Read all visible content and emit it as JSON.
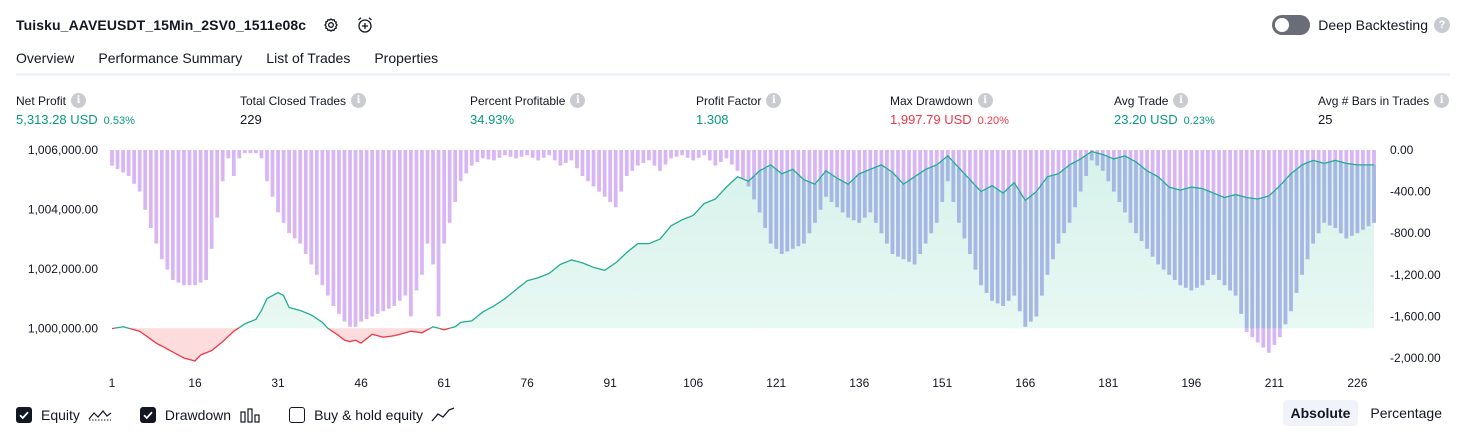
{
  "header": {
    "title": "Tuisku_AAVEUSDT_15Min_2SV0_1511e08c",
    "settings_icon": "gear-icon",
    "alert_icon": "alarm-clock-plus-icon"
  },
  "deep_backtesting": {
    "label": "Deep Backtesting",
    "enabled": false,
    "help_icon": "question-icon"
  },
  "tabs": [
    {
      "label": "Overview",
      "active": true
    },
    {
      "label": "Performance Summary",
      "active": false
    },
    {
      "label": "List of Trades",
      "active": false
    },
    {
      "label": "Properties",
      "active": false
    }
  ],
  "metrics": [
    {
      "label": "Net Profit",
      "value": "5,313.28 USD",
      "pct": "0.53%",
      "tone": "pos"
    },
    {
      "label": "Total Closed Trades",
      "value": "229",
      "pct": "",
      "tone": "neutral"
    },
    {
      "label": "Percent Profitable",
      "value": "34.93%",
      "pct": "",
      "tone": "pos"
    },
    {
      "label": "Profit Factor",
      "value": "1.308",
      "pct": "",
      "tone": "pos"
    },
    {
      "label": "Max Drawdown",
      "value": "1,997.79 USD",
      "pct": "0.20%",
      "tone": "neg"
    },
    {
      "label": "Avg Trade",
      "value": "23.20 USD",
      "pct": "0.23%",
      "tone": "pos"
    },
    {
      "label": "Avg # Bars in Trades",
      "value": "25",
      "pct": "",
      "tone": "neutral"
    }
  ],
  "chart_data": {
    "type": "line",
    "x_ticks": [
      "1",
      "16",
      "31",
      "46",
      "61",
      "76",
      "91",
      "106",
      "121",
      "136",
      "151",
      "166",
      "181",
      "196",
      "211",
      "226"
    ],
    "xlim": [
      1,
      229
    ],
    "y_left": {
      "ticks": [
        "1,006,000.00",
        "1,004,000.00",
        "1,002,000.00",
        "1,000,000.00"
      ],
      "values": [
        1006000,
        1004000,
        1002000,
        1000000
      ],
      "ylim": [
        999000,
        1006000
      ]
    },
    "y_right": {
      "ticks": [
        "0.00",
        "-400.00",
        "-800.00",
        "-1,200.00",
        "-1,600.00",
        "-2,000.00"
      ],
      "values": [
        0,
        -400,
        -800,
        -1200,
        -1600,
        -2000
      ],
      "ylim": [
        -2000,
        0
      ]
    },
    "baseline": 1000000,
    "colors": {
      "equity_up": "#22ab94",
      "equity_down": "#f23645",
      "fill_up": "#d6f2ea",
      "fill_down": "#fcdcdc",
      "drawdown": "#d8b6f4",
      "drawdown_over_fill": "#a6b7e3"
    },
    "series": [
      {
        "name": "Equity",
        "kind": "line",
        "key_points": [
          [
            1,
            999990
          ],
          [
            3,
            1000050
          ],
          [
            6,
            999900
          ],
          [
            9,
            999500
          ],
          [
            12,
            999200
          ],
          [
            14,
            999000
          ],
          [
            16,
            998900
          ],
          [
            17,
            999100
          ],
          [
            19,
            999250
          ],
          [
            21,
            999550
          ],
          [
            23,
            999900
          ],
          [
            25,
            1000150
          ],
          [
            27,
            1000300
          ],
          [
            28,
            1000600
          ],
          [
            29,
            1001000
          ],
          [
            31,
            1001200
          ],
          [
            32,
            1001100
          ],
          [
            33,
            1000700
          ],
          [
            35,
            1000600
          ],
          [
            37,
            1000450
          ],
          [
            39,
            1000200
          ],
          [
            40,
            1000000
          ],
          [
            42,
            999750
          ],
          [
            43,
            999600
          ],
          [
            44,
            999550
          ],
          [
            45,
            999600
          ],
          [
            46,
            999500
          ],
          [
            47,
            999650
          ],
          [
            48,
            999800
          ],
          [
            50,
            999700
          ],
          [
            52,
            999750
          ],
          [
            55,
            999900
          ],
          [
            57,
            999850
          ],
          [
            58,
            999950
          ],
          [
            59,
            1000050
          ],
          [
            61,
            999950
          ],
          [
            63,
            1000050
          ],
          [
            64,
            1000200
          ],
          [
            66,
            1000250
          ],
          [
            68,
            1000550
          ],
          [
            70,
            1000750
          ],
          [
            72,
            1001000
          ],
          [
            74,
            1001300
          ],
          [
            76,
            1001600
          ],
          [
            78,
            1001700
          ],
          [
            80,
            1001850
          ],
          [
            82,
            1002150
          ],
          [
            84,
            1002300
          ],
          [
            86,
            1002200
          ],
          [
            88,
            1002050
          ],
          [
            90,
            1001950
          ],
          [
            92,
            1002200
          ],
          [
            94,
            1002550
          ],
          [
            96,
            1002850
          ],
          [
            98,
            1002850
          ],
          [
            100,
            1003000
          ],
          [
            102,
            1003450
          ],
          [
            104,
            1003650
          ],
          [
            106,
            1003800
          ],
          [
            108,
            1004200
          ],
          [
            110,
            1004350
          ],
          [
            112,
            1004750
          ],
          [
            114,
            1005100
          ],
          [
            116,
            1004950
          ],
          [
            118,
            1005300
          ],
          [
            120,
            1005500
          ],
          [
            122,
            1005200
          ],
          [
            124,
            1005350
          ],
          [
            126,
            1005000
          ],
          [
            128,
            1004850
          ],
          [
            130,
            1005300
          ],
          [
            132,
            1005050
          ],
          [
            134,
            1004850
          ],
          [
            136,
            1005200
          ],
          [
            138,
            1005350
          ],
          [
            140,
            1005500
          ],
          [
            142,
            1005250
          ],
          [
            144,
            1004850
          ],
          [
            146,
            1005100
          ],
          [
            148,
            1005350
          ],
          [
            150,
            1005500
          ],
          [
            152,
            1005800
          ],
          [
            154,
            1005400
          ],
          [
            156,
            1005000
          ],
          [
            158,
            1004600
          ],
          [
            160,
            1004800
          ],
          [
            162,
            1004550
          ],
          [
            164,
            1004900
          ],
          [
            166,
            1004300
          ],
          [
            168,
            1004600
          ],
          [
            170,
            1005100
          ],
          [
            172,
            1005200
          ],
          [
            174,
            1005500
          ],
          [
            176,
            1005700
          ],
          [
            178,
            1005950
          ],
          [
            180,
            1005850
          ],
          [
            182,
            1005700
          ],
          [
            184,
            1005800
          ],
          [
            186,
            1005600
          ],
          [
            188,
            1005300
          ],
          [
            190,
            1005100
          ],
          [
            192,
            1004750
          ],
          [
            194,
            1004650
          ],
          [
            196,
            1004750
          ],
          [
            198,
            1004700
          ],
          [
            200,
            1004550
          ],
          [
            202,
            1004400
          ],
          [
            204,
            1004500
          ],
          [
            206,
            1004400
          ],
          [
            208,
            1004350
          ],
          [
            210,
            1004450
          ],
          [
            212,
            1004800
          ],
          [
            214,
            1005200
          ],
          [
            216,
            1005500
          ],
          [
            218,
            1005650
          ],
          [
            220,
            1005550
          ],
          [
            222,
            1005650
          ],
          [
            224,
            1005550
          ],
          [
            226,
            1005500
          ],
          [
            229,
            1005500
          ]
        ]
      },
      {
        "name": "Drawdown",
        "kind": "bar",
        "key_points": [
          [
            1,
            -150
          ],
          [
            4,
            -250
          ],
          [
            6,
            -400
          ],
          [
            8,
            -750
          ],
          [
            10,
            -1050
          ],
          [
            12,
            -1250
          ],
          [
            14,
            -1300
          ],
          [
            16,
            -1300
          ],
          [
            18,
            -1250
          ],
          [
            19,
            -950
          ],
          [
            20,
            -650
          ],
          [
            21,
            -300
          ],
          [
            22,
            -80
          ],
          [
            23,
            -250
          ],
          [
            24,
            -80
          ],
          [
            25,
            -30
          ],
          [
            27,
            -30
          ],
          [
            28,
            -80
          ],
          [
            29,
            -300
          ],
          [
            31,
            -600
          ],
          [
            33,
            -800
          ],
          [
            35,
            -900
          ],
          [
            37,
            -1100
          ],
          [
            39,
            -1300
          ],
          [
            41,
            -1500
          ],
          [
            43,
            -1650
          ],
          [
            44,
            -1700
          ],
          [
            45,
            -1700
          ],
          [
            46,
            -1650
          ],
          [
            48,
            -1600
          ],
          [
            50,
            -1550
          ],
          [
            52,
            -1500
          ],
          [
            54,
            -1400
          ],
          [
            55,
            -1600
          ],
          [
            56,
            -1350
          ],
          [
            57,
            -1200
          ],
          [
            58,
            -900
          ],
          [
            59,
            -1100
          ],
          [
            60,
            -1600
          ],
          [
            61,
            -900
          ],
          [
            62,
            -700
          ],
          [
            63,
            -500
          ],
          [
            64,
            -300
          ],
          [
            66,
            -150
          ],
          [
            68,
            -80
          ],
          [
            70,
            -100
          ],
          [
            72,
            -50
          ],
          [
            74,
            -80
          ],
          [
            76,
            -50
          ],
          [
            78,
            -100
          ],
          [
            80,
            -50
          ],
          [
            82,
            -150
          ],
          [
            84,
            -100
          ],
          [
            86,
            -250
          ],
          [
            88,
            -350
          ],
          [
            90,
            -450
          ],
          [
            92,
            -550
          ],
          [
            93,
            -400
          ],
          [
            94,
            -250
          ],
          [
            96,
            -150
          ],
          [
            98,
            -100
          ],
          [
            100,
            -200
          ],
          [
            102,
            -80
          ],
          [
            104,
            -50
          ],
          [
            106,
            -100
          ],
          [
            108,
            -50
          ],
          [
            110,
            -150
          ],
          [
            112,
            -80
          ],
          [
            114,
            -200
          ],
          [
            116,
            -350
          ],
          [
            118,
            -600
          ],
          [
            120,
            -900
          ],
          [
            122,
            -1000
          ],
          [
            124,
            -950
          ],
          [
            126,
            -900
          ],
          [
            128,
            -700
          ],
          [
            130,
            -450
          ],
          [
            132,
            -550
          ],
          [
            134,
            -650
          ],
          [
            136,
            -700
          ],
          [
            138,
            -600
          ],
          [
            140,
            -800
          ],
          [
            142,
            -1000
          ],
          [
            144,
            -1050
          ],
          [
            146,
            -1100
          ],
          [
            148,
            -900
          ],
          [
            150,
            -700
          ],
          [
            152,
            -300
          ],
          [
            154,
            -700
          ],
          [
            156,
            -1000
          ],
          [
            158,
            -1300
          ],
          [
            160,
            -1450
          ],
          [
            162,
            -1500
          ],
          [
            164,
            -1400
          ],
          [
            166,
            -1700
          ],
          [
            168,
            -1600
          ],
          [
            170,
            -1200
          ],
          [
            172,
            -900
          ],
          [
            174,
            -700
          ],
          [
            176,
            -400
          ],
          [
            178,
            -100
          ],
          [
            180,
            -200
          ],
          [
            182,
            -400
          ],
          [
            184,
            -600
          ],
          [
            186,
            -800
          ],
          [
            188,
            -950
          ],
          [
            190,
            -1100
          ],
          [
            192,
            -1200
          ],
          [
            194,
            -1300
          ],
          [
            196,
            -1350
          ],
          [
            198,
            -1300
          ],
          [
            200,
            -1200
          ],
          [
            202,
            -1300
          ],
          [
            204,
            -1400
          ],
          [
            206,
            -1750
          ],
          [
            208,
            -1850
          ],
          [
            210,
            -1950
          ],
          [
            212,
            -1800
          ],
          [
            214,
            -1550
          ],
          [
            216,
            -1200
          ],
          [
            218,
            -900
          ],
          [
            220,
            -700
          ],
          [
            222,
            -750
          ],
          [
            224,
            -850
          ],
          [
            226,
            -800
          ],
          [
            229,
            -700
          ]
        ]
      }
    ]
  },
  "footer": {
    "legend": [
      {
        "label": "Equity",
        "checked": true,
        "icon": "equity-line-icon"
      },
      {
        "label": "Drawdown",
        "checked": true,
        "icon": "drawdown-bars-icon"
      },
      {
        "label": "Buy & hold equity",
        "checked": false,
        "icon": "buy-hold-line-icon"
      }
    ],
    "modes": [
      {
        "label": "Absolute",
        "active": true
      },
      {
        "label": "Percentage",
        "active": false
      }
    ]
  }
}
